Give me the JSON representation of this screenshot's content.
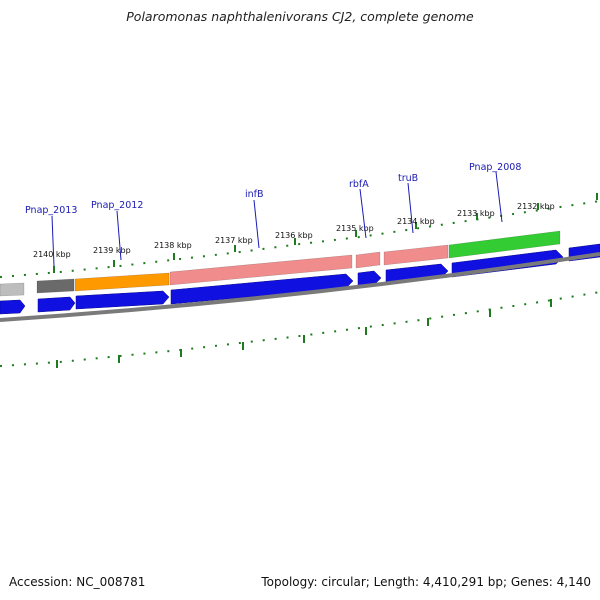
{
  "title": "Polaromonas naphthalenivorans CJ2, complete genome",
  "footer": {
    "accession": "Accession: NC_008781",
    "summary": "Topology: circular; Length: 4,410,291 bp; Genes: 4,140"
  },
  "colors": {
    "forward_blue": "#1010e0",
    "backbone": "#7a7a7a",
    "tick_green": "#1f7a1f",
    "label_line": "#1a1ab4",
    "gene_label": "#1a1ab4",
    "orange": "#ff9900",
    "light_red": "#f08c8c",
    "green": "#33cc33",
    "gray": "#bdbdbd",
    "dark_gray": "#6a6a6a"
  },
  "scale_labels": [
    "2140 kbp",
    "2139 kbp",
    "2138 kbp",
    "2137 kbp",
    "2136 kbp",
    "2135 kbp",
    "2134 kbp",
    "2133 kbp",
    "2132 kbp"
  ],
  "gene_labels": [
    "Pnap_2013",
    "Pnap_2012",
    "infB",
    "rbfA",
    "truB",
    "Pnap_2008"
  ],
  "reverse_feature_colors": [
    "gray",
    "dark_gray",
    "orange",
    "light_red",
    "light_red",
    "light_red",
    "green"
  ]
}
